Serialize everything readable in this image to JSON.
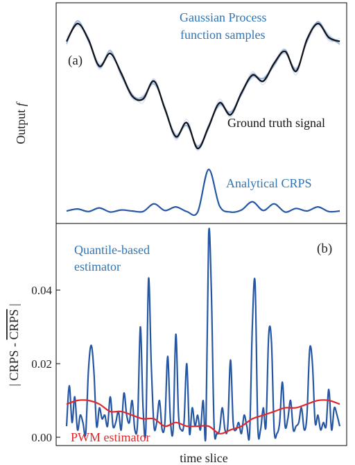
{
  "chart_data": [
    {
      "panel": "(a)",
      "type": "line",
      "ylabel": "Output f",
      "annotations": {
        "samples": [
          "Gaussian Process",
          "function samples"
        ],
        "truth": "Ground truth signal",
        "crps": "Analytical CRPS"
      },
      "series": [
        {
          "name": "Ground truth signal",
          "x": [
            0,
            4,
            8,
            12,
            16,
            20,
            24,
            28,
            32,
            36,
            40,
            44,
            48,
            52,
            56,
            60,
            64,
            68,
            72,
            76,
            80,
            84,
            88,
            92,
            96,
            100
          ],
          "y": [
            0.8,
            0.98,
            0.82,
            0.55,
            0.68,
            0.48,
            0.25,
            0.22,
            0.4,
            0.12,
            -0.16,
            -0.02,
            -0.28,
            -0.06,
            0.18,
            0.06,
            0.28,
            0.46,
            0.4,
            0.58,
            0.7,
            0.5,
            0.82,
            0.98,
            0.84,
            0.8
          ]
        },
        {
          "name": "Analytical CRPS",
          "x": [
            0,
            4,
            8,
            12,
            16,
            20,
            24,
            28,
            32,
            36,
            40,
            44,
            48,
            52,
            56,
            60,
            64,
            68,
            72,
            76,
            80,
            84,
            88,
            92,
            96,
            100
          ],
          "y": [
            0.04,
            0.08,
            0.03,
            0.1,
            0.02,
            0.06,
            0.04,
            0.03,
            0.18,
            0.05,
            0.12,
            0.03,
            0.02,
            0.85,
            0.14,
            0.02,
            0.06,
            0.22,
            0.05,
            0.18,
            0.02,
            0.09,
            0.04,
            0.12,
            0.03,
            0.04
          ]
        }
      ]
    },
    {
      "panel": "(b)",
      "type": "line",
      "xlabel": "time slice",
      "ylabel": "| CRPS - CRPS^ |",
      "ylabel_parts": [
        "| CRPS - ",
        "CRPS",
        " |"
      ],
      "yticks": [
        "0.00",
        "0.02",
        "0.04"
      ],
      "ylim": [
        -0.001,
        0.056
      ],
      "annotations": {
        "quantile": [
          "Quantile-based",
          "estimator"
        ],
        "pwm": "PWM estimator"
      },
      "series": [
        {
          "name": "Quantile-based estimator",
          "color": "#2456a4",
          "x": [
            0,
            1,
            2,
            3,
            4,
            5,
            6,
            7,
            8,
            9,
            10,
            11,
            12,
            13,
            14,
            15,
            16,
            17,
            18,
            19,
            20,
            21,
            22,
            23,
            24,
            25,
            26,
            27,
            28,
            29,
            30,
            31,
            32,
            33,
            34,
            35,
            36,
            37,
            38,
            39,
            40,
            41,
            42,
            43,
            44,
            45,
            46,
            47,
            48,
            49,
            50,
            51,
            52,
            53,
            54,
            55,
            56,
            57,
            58,
            59,
            60,
            61,
            62,
            63,
            64,
            65,
            66,
            67,
            68,
            69,
            70,
            71,
            72,
            73,
            74,
            75,
            76,
            77,
            78,
            79,
            80,
            81,
            82,
            83,
            84,
            85,
            86,
            87,
            88,
            89,
            90,
            91,
            92,
            93,
            94,
            95,
            96,
            97,
            98,
            99,
            100
          ],
          "y": [
            0.003,
            0.014,
            0.004,
            0.011,
            0.002,
            0.006,
            0.004,
            0.001,
            0.018,
            0.025,
            0.018,
            0.003,
            0.008,
            0.005,
            0.006,
            0.003,
            0.011,
            0.003,
            0.004,
            0.007,
            0.002,
            0.012,
            0.006,
            0.004,
            0.01,
            0.002,
            0.004,
            0.03,
            0.008,
            0.002,
            0.043,
            0.02,
            0.003,
            0.004,
            0.01,
            0.002,
            0.004,
            0.022,
            0.005,
            0.002,
            0.028,
            0.006,
            0.002,
            0.004,
            0.02,
            0.001,
            0.008,
            0.003,
            0.006,
            0.002,
            0.01,
            0.001,
            0.055,
            0.04,
            0.003,
            0.001,
            0.002,
            0.008,
            0.002,
            0.003,
            0.021,
            0.004,
            0.002,
            0.004,
            0.001,
            0.006,
            0.003,
            0.001,
            0.03,
            0.042,
            0.003,
            0.002,
            0.008,
            0.003,
            0.028,
            0.026,
            0.002,
            0.001,
            0.004,
            0.015,
            0.003,
            0.005,
            0.01,
            0.002,
            0.003,
            0.004,
            0.008,
            0.002,
            0.006,
            0.024,
            0.02,
            0.004,
            0.006,
            0.002,
            0.004,
            0.003,
            0.013,
            0.002,
            0.008,
            0.006,
            0.003
          ]
        },
        {
          "name": "PWM estimator",
          "color": "#e0272b",
          "x": [
            0,
            4,
            8,
            12,
            16,
            20,
            24,
            28,
            32,
            36,
            40,
            44,
            48,
            52,
            56,
            60,
            64,
            68,
            72,
            76,
            80,
            84,
            88,
            92,
            96,
            100
          ],
          "y": [
            0.009,
            0.01,
            0.01,
            0.009,
            0.007,
            0.007,
            0.006,
            0.005,
            0.005,
            0.003,
            0.004,
            0.003,
            0.003,
            0.003,
            0.001,
            0.002,
            0.003,
            0.005,
            0.006,
            0.007,
            0.008,
            0.008,
            0.009,
            0.01,
            0.01,
            0.009
          ]
        }
      ]
    }
  ]
}
